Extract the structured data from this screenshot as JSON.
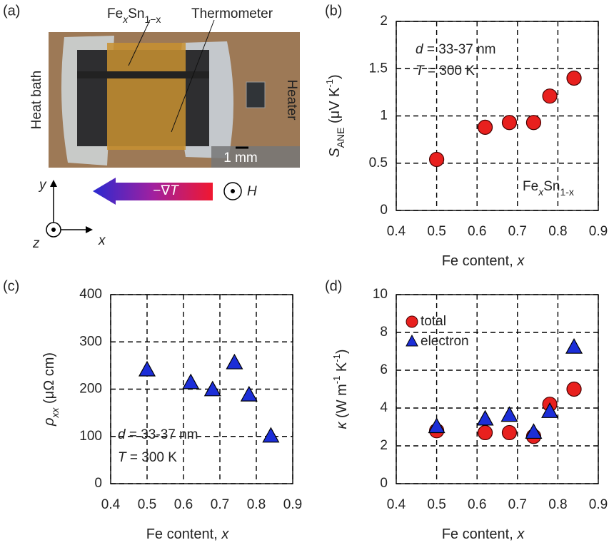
{
  "panel_a": {
    "label": "(a)",
    "sample": [
      "Fe",
      "x",
      "Sn",
      "1−x"
    ],
    "thermometer": "Thermometer",
    "heat_bath": "Heat bath",
    "heater": "Heater",
    "scale_bar": "1 mm",
    "gradient": [
      "−∇",
      "T"
    ],
    "field": "H",
    "axes": {
      "x": "x",
      "y": "y",
      "z": "z"
    }
  },
  "chart_data": [
    {
      "type": "scatter",
      "panel": "(b)",
      "x_label": [
        "Fe content, ",
        "x"
      ],
      "y_label": [
        "S",
        "ANE",
        " (μV K",
        "-1",
        ")"
      ],
      "annotations": [
        [
          "d",
          " = 33-37 nm"
        ],
        [
          "T",
          " = 300 K"
        ],
        [
          "Fe",
          "x",
          "Sn",
          "1-x"
        ]
      ],
      "xlim": [
        0.4,
        0.9
      ],
      "xticks": [
        0.4,
        0.5,
        0.6,
        0.7,
        0.8,
        0.9
      ],
      "ylim": [
        0,
        2
      ],
      "yticks": [
        0,
        0.5,
        1,
        1.5,
        2
      ],
      "grid": true,
      "x": [
        0.5,
        0.62,
        0.68,
        0.74,
        0.78,
        0.84
      ],
      "series": [
        {
          "color": "#e8201e",
          "marker": "circle",
          "values": [
            0.54,
            0.88,
            0.93,
            0.93,
            1.21,
            1.4
          ]
        }
      ]
    },
    {
      "type": "scatter",
      "panel": "(c)",
      "x_label": [
        "Fe content, ",
        "x"
      ],
      "y_label": [
        "ρ",
        "xx",
        " (μΩ cm)"
      ],
      "annotations": [
        [
          "d",
          " = 33-37 nm"
        ],
        [
          "T",
          " = 300 K"
        ]
      ],
      "xlim": [
        0.4,
        0.9
      ],
      "xticks": [
        0.4,
        0.5,
        0.6,
        0.7,
        0.8,
        0.9
      ],
      "ylim": [
        0,
        400
      ],
      "yticks": [
        0,
        100,
        200,
        300,
        400
      ],
      "grid": true,
      "x": [
        0.5,
        0.62,
        0.68,
        0.74,
        0.78,
        0.84
      ],
      "series": [
        {
          "color": "#1c2ed8",
          "marker": "triangle",
          "values": [
            240,
            213,
            198,
            255,
            187,
            100
          ]
        }
      ]
    },
    {
      "type": "scatter",
      "panel": "(d)",
      "x_label": [
        "Fe content, ",
        "x"
      ],
      "y_label": [
        "κ",
        " (W m",
        "-1",
        " K",
        "-1",
        ")"
      ],
      "annotations": [],
      "xlim": [
        0.4,
        0.9
      ],
      "xticks": [
        0.4,
        0.5,
        0.6,
        0.7,
        0.8,
        0.9
      ],
      "ylim": [
        0,
        10
      ],
      "yticks": [
        0,
        2,
        4,
        6,
        8,
        10
      ],
      "grid": true,
      "legend": "top-left",
      "x": [
        0.5,
        0.62,
        0.68,
        0.74,
        0.78,
        0.84
      ],
      "series": [
        {
          "name": "total",
          "color": "#e8201e",
          "marker": "circle",
          "values": [
            2.8,
            2.7,
            2.7,
            2.5,
            4.2,
            5.0
          ]
        },
        {
          "name": "electron",
          "color": "#1c2ed8",
          "marker": "triangle",
          "values": [
            3.0,
            3.4,
            3.6,
            2.7,
            3.8,
            7.2
          ]
        }
      ]
    }
  ]
}
